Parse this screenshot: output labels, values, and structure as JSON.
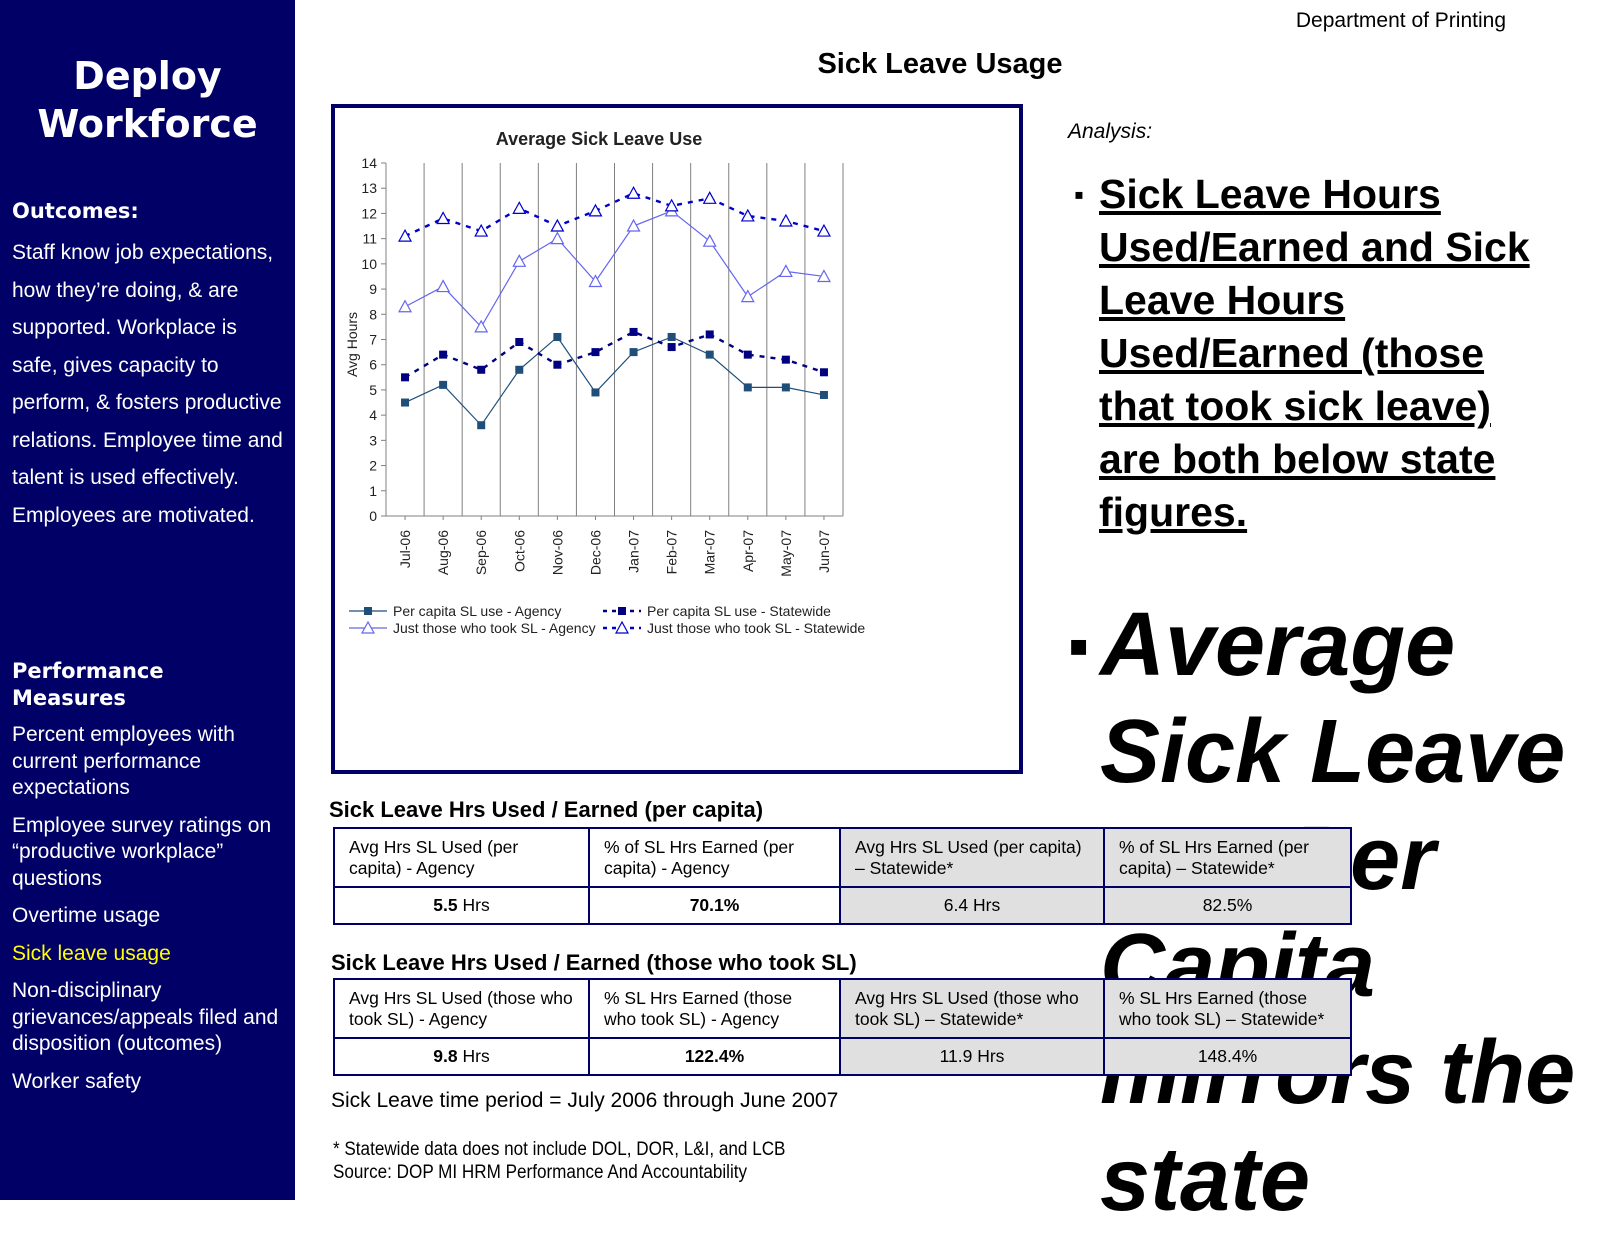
{
  "sidebar": {
    "title_line1": "Deploy",
    "title_line2": "Workforce",
    "outcomes_heading": "Outcomes:",
    "outcomes_text": "Staff know job expectations, how they’re doing, & are supported. Workplace is safe, gives capacity to perform, & fosters productive relations. Employee time and talent is used effectively. Employees are motivated.",
    "measures_heading_line1": "Performance",
    "measures_heading_line2": "Measures",
    "measures": [
      "Percent employees with current performance expectations",
      "Employee survey ratings on “productive workplace” questions",
      "Overtime usage",
      "Sick leave usage",
      "Non-disciplinary grievances/appeals filed and disposition (outcomes)",
      "Worker safety"
    ],
    "active_measure_index": 3
  },
  "header": {
    "department": "Department of Printing",
    "page_title": "Sick Leave Usage"
  },
  "chart_data": {
    "type": "line",
    "title": "Average Sick Leave Use",
    "ylabel": "Avg Hours",
    "xlabel": "",
    "ylim": [
      0,
      14
    ],
    "yticks": [
      0,
      1,
      2,
      3,
      4,
      5,
      6,
      7,
      8,
      9,
      10,
      11,
      12,
      13,
      14
    ],
    "grid": "vertical",
    "legend_position": "bottom",
    "categories": [
      "Jul-06",
      "Aug-06",
      "Sep-06",
      "Oct-06",
      "Nov-06",
      "Dec-06",
      "Jan-07",
      "Feb-07",
      "Mar-07",
      "Apr-07",
      "May-07",
      "Jun-07"
    ],
    "series": [
      {
        "name": "Per capita SL use - Agency",
        "values": [
          4.5,
          5.2,
          3.6,
          5.8,
          7.1,
          4.9,
          6.5,
          7.1,
          6.4,
          5.1,
          5.1,
          4.8
        ],
        "color": "#1f4e79",
        "marker": "square",
        "style": "solid"
      },
      {
        "name": "Per capita SL use - Statewide",
        "values": [
          5.5,
          6.4,
          5.8,
          6.9,
          6.0,
          6.5,
          7.3,
          6.7,
          7.2,
          6.4,
          6.2,
          5.7
        ],
        "color": "#000080",
        "marker": "square",
        "style": "dashed"
      },
      {
        "name": "Just those who took SL - Agency",
        "values": [
          8.3,
          9.1,
          7.5,
          10.1,
          11.0,
          9.3,
          11.5,
          12.1,
          10.9,
          8.7,
          9.7,
          9.5
        ],
        "color": "#6666ee",
        "marker": "triangle",
        "style": "solid"
      },
      {
        "name": "Just those who took SL - Statewide",
        "values": [
          11.1,
          11.8,
          11.3,
          12.2,
          11.5,
          12.1,
          12.8,
          12.3,
          12.6,
          11.9,
          11.7,
          11.3
        ],
        "color": "#0000cc",
        "marker": "triangle",
        "style": "dashed"
      }
    ]
  },
  "analysis": {
    "label": "Analysis:",
    "bullet_marker": "▪",
    "bullet1": "Sick Leave Hours Used/Earned and Sick Leave Hours Used/Earned (those that took sick leave) are both below state figures.",
    "bullet2": "Average Sick Leave Use Per Capita mirrors the state"
  },
  "table1": {
    "caption": "Sick Leave Hrs Used / Earned (per capita)",
    "headers": [
      "Avg Hrs SL Used (per capita) - Agency",
      "% of SL Hrs Earned (per capita) - Agency",
      "Avg Hrs SL Used (per capita) – Statewide*",
      "% of SL Hrs Earned (per capita) – Statewide*"
    ],
    "v1_num": "5.5",
    "v1_unit": " Hrs",
    "v2": "70.1%",
    "v3": "6.4 Hrs",
    "v4": "82.5%"
  },
  "table2": {
    "caption": "Sick Leave Hrs Used / Earned (those who took SL)",
    "headers": [
      "Avg Hrs SL Used (those who took SL) - Agency",
      "% SL Hrs Earned (those who took SL) - Agency",
      "Avg Hrs SL Used (those who took SL) – Statewide*",
      "% SL Hrs Earned (those who took SL) – Statewide*"
    ],
    "v1_num": "9.8",
    "v1_unit": " Hrs",
    "v2": "122.4%",
    "v3": "11.9 Hrs",
    "v4": "148.4%"
  },
  "footer": {
    "period": "Sick Leave time period = July 2006 through June 2007",
    "note1": "* Statewide data does not include DOL, DOR, L&I, and LCB",
    "note2": "Source:  DOP MI HRM Performance And Accountability"
  }
}
